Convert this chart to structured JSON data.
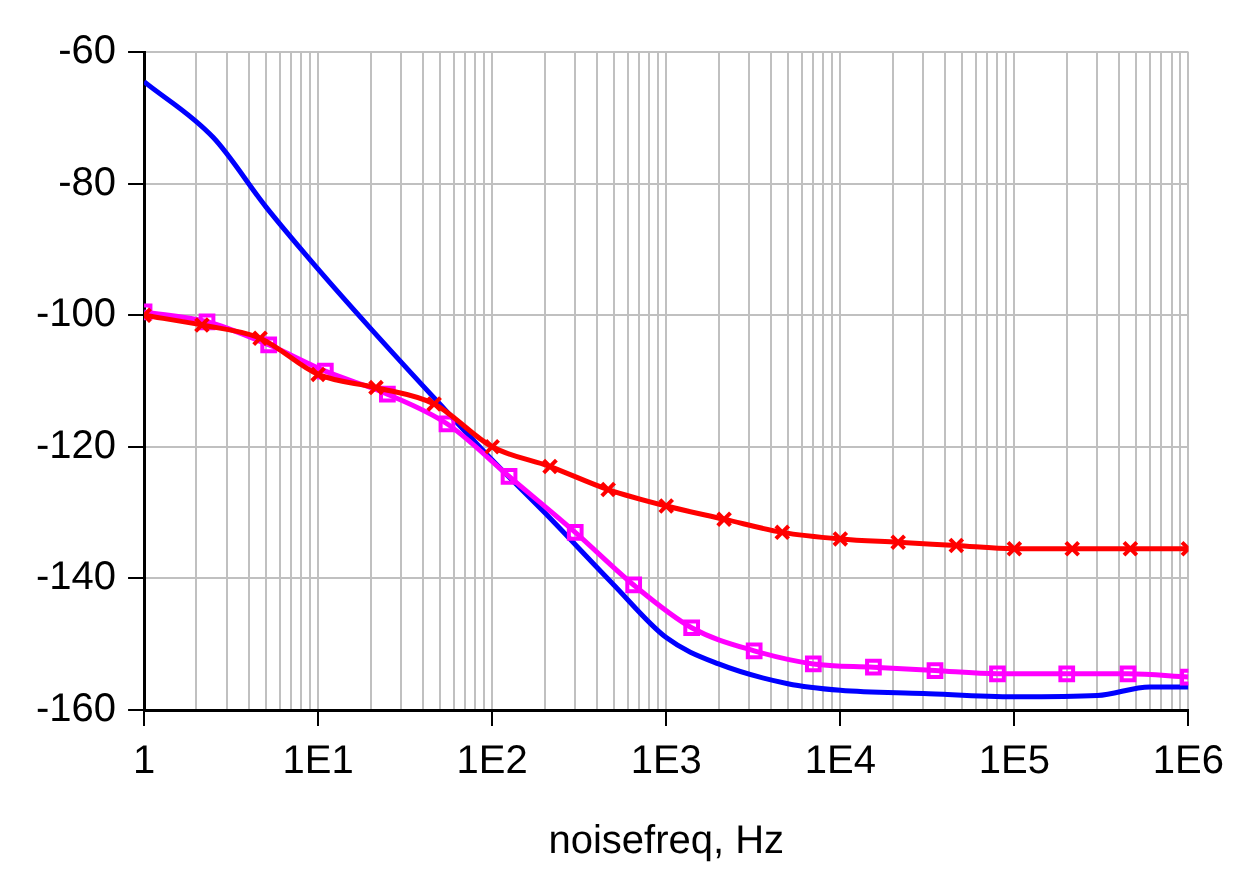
{
  "chart_data": {
    "type": "line",
    "xlabel": "noisefreq, Hz",
    "log": "x",
    "grid": true,
    "legend": false,
    "xlim": [
      1,
      1000000
    ],
    "xticks": [
      {
        "value": 1,
        "label": "1"
      },
      {
        "value": 10,
        "label": "1E1"
      },
      {
        "value": 100,
        "label": "1E2"
      },
      {
        "value": 1000,
        "label": "1E3"
      },
      {
        "value": 10000,
        "label": "1E4"
      },
      {
        "value": 100000,
        "label": "1E5"
      },
      {
        "value": 1000000,
        "label": "1E6"
      }
    ],
    "ylim": [
      -160,
      -60
    ],
    "yticks": [
      -160,
      -140,
      -120,
      -100,
      -80,
      -60
    ],
    "series": [
      {
        "color": "#0000ff",
        "marker": "none",
        "x": [
          1,
          2.5,
          5,
          10,
          20,
          50,
          100,
          200,
          500,
          1000,
          2000,
          5000,
          10000,
          30000,
          100000,
          300000,
          600000,
          1000000
        ],
        "values": [
          -64.5,
          -73,
          -83.5,
          -93,
          -102,
          -113.5,
          -122,
          -130,
          -141,
          -149,
          -153,
          -156,
          -157,
          -157.5,
          -158,
          -157.8,
          -156.5,
          -156.5
        ]
      },
      {
        "color": "#ff00ff",
        "marker": "square",
        "x": [
          1,
          2.3,
          5.2,
          11,
          25,
          55,
          125,
          300,
          650,
          1400,
          3200,
          7000,
          15500,
          35000,
          80000,
          200000,
          450000,
          1000000
        ],
        "values": [
          -99.5,
          -101,
          -104.5,
          -108.5,
          -112,
          -116.5,
          -124.5,
          -133,
          -141,
          -147.5,
          -151,
          -153,
          -153.5,
          -154,
          -154.5,
          -154.5,
          -154.5,
          -155
        ]
      },
      {
        "color": "#ff0000",
        "marker": "cross",
        "x": [
          1,
          2.15,
          4.64,
          10,
          21.5,
          46.4,
          100,
          215,
          464,
          1000,
          2150,
          4640,
          10000,
          21500,
          46400,
          100000,
          215000,
          464000,
          1000000
        ],
        "values": [
          -100,
          -101.5,
          -103.5,
          -109,
          -111,
          -113.5,
          -120,
          -123,
          -126.5,
          -129,
          -131,
          -133,
          -134,
          -134.5,
          -135,
          -135.5,
          -135.5,
          -135.5,
          -135.5
        ]
      }
    ]
  }
}
